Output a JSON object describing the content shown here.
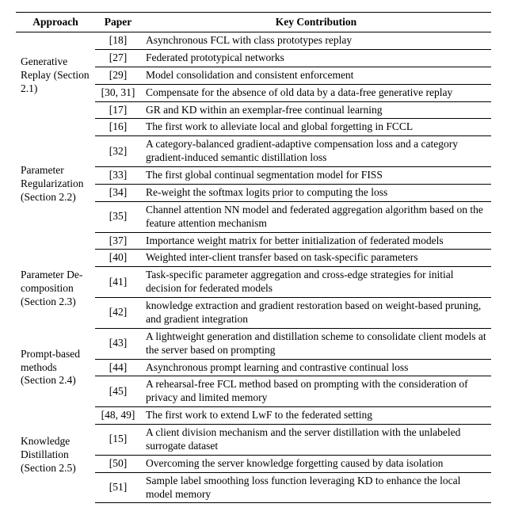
{
  "headers": {
    "approach": "Approach",
    "paper": "Paper",
    "contrib": "Key Contribution"
  },
  "groups": [
    {
      "approach": "Generative Replay (Section 2.1)",
      "rows": [
        {
          "paper": "[18]",
          "contrib": "Asynchronous FCL with class prototypes replay"
        },
        {
          "paper": "[27]",
          "contrib": "Federated prototypical networks"
        },
        {
          "paper": "[29]",
          "contrib": "Model consolidation and consistent enforcement"
        },
        {
          "paper": "[30, 31]",
          "contrib": "Compensate for the absence of old data by a data-free generative replay"
        },
        {
          "paper": "[17]",
          "contrib": "GR and KD within an exemplar-free continual learning"
        }
      ]
    },
    {
      "approach": "Parameter Regulariza­tion (Section 2.2)",
      "rows": [
        {
          "paper": "[16]",
          "contrib": "The first work to alleviate local and global forgetting in FCCL"
        },
        {
          "paper": "[32]",
          "contrib": "A category-balanced gradient-adaptive compensation loss and a cate­gory gradient-induced semantic distillation loss"
        },
        {
          "paper": "[33]",
          "contrib": "The first global continual segmentation model for FISS"
        },
        {
          "paper": "[34]",
          "contrib": "Re-weight the softmax logits prior to computing the loss"
        },
        {
          "paper": "[35]",
          "contrib": "Channel attention NN model and federated aggregation algorithm based on the feature attention mechanism"
        },
        {
          "paper": "[37]",
          "contrib": "Importance weight matrix for better initialization of federated models"
        }
      ]
    },
    {
      "approach": "Parameter De­composition (Section 2.3)",
      "rows": [
        {
          "paper": "[40]",
          "contrib": "Weighted inter-client transfer based on task-specific parameters"
        },
        {
          "paper": "[41]",
          "contrib": "Task-specific parameter aggregation and cross-edge strategies for initial decision for federated models"
        },
        {
          "paper": "[42]",
          "contrib": "knowledge extraction and gradient restoration based on weight-based pruning, and gradient integration"
        }
      ]
    },
    {
      "approach": "Prompt-based methods (Section 2.4)",
      "rows": [
        {
          "paper": "[43]",
          "contrib": "A lightweight generation and distillation scheme to consolidate client models at the server based on prompting"
        },
        {
          "paper": "[44]",
          "contrib": "Asynchronous prompt learning and contrastive continual loss"
        },
        {
          "paper": "[45]",
          "contrib": "A rehearsal-free FCL method based on prompting with the considera­tion of privacy and limited memory"
        }
      ]
    },
    {
      "approach": "Knowledge Distillation (Section 2.5)",
      "rows": [
        {
          "paper": "[48, 49]",
          "contrib": "The first work to extend LwF to the federated setting"
        },
        {
          "paper": "[15]",
          "contrib": "A client division mechanism and the server distillation with the unla­beled surrogate dataset"
        },
        {
          "paper": "[50]",
          "contrib": "Overcoming the server knowledge forgetting caused by data isolation"
        },
        {
          "paper": "[51]",
          "contrib": "Sample label smoothing loss function leveraging KD to enhance the local model memory"
        }
      ]
    }
  ]
}
